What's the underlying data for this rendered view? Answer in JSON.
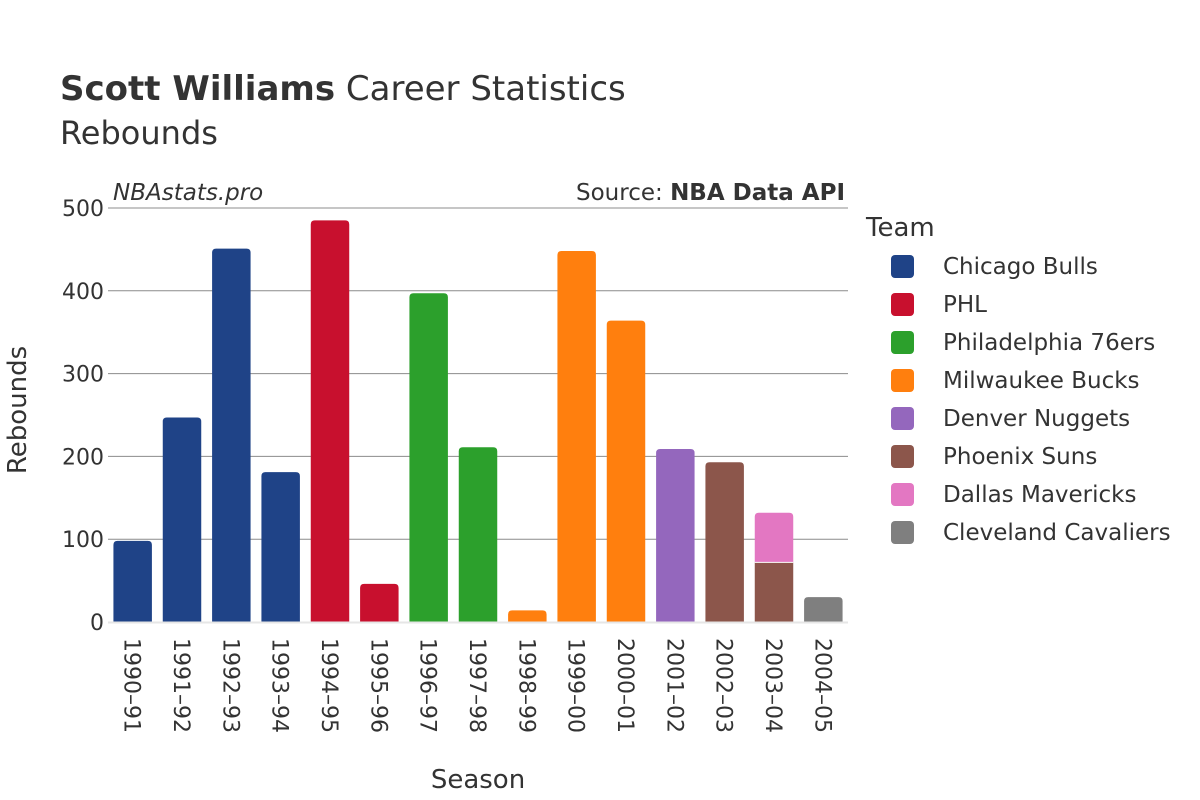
{
  "header": {
    "title_bold": "Scott Williams",
    "title_rest": " Career Statistics",
    "subtitle": "Rebounds",
    "watermark": "NBAstats.pro",
    "source_prefix": "Source: ",
    "source_name": "NBA Data API"
  },
  "legend": {
    "title": "Team"
  },
  "chart_data": {
    "type": "bar",
    "stacked": true,
    "xlabel": "Season",
    "ylabel": "Rebounds",
    "ylim": [
      0,
      500
    ],
    "yticks": [
      0,
      100,
      200,
      300,
      400,
      500
    ],
    "grid": true,
    "legend_position": "right",
    "categories": [
      "1990–91",
      "1991–92",
      "1992–93",
      "1993–94",
      "1994–95",
      "1995–96",
      "1996–97",
      "1997–98",
      "1998–99",
      "1999–00",
      "2000–01",
      "2001–02",
      "2002–03",
      "2003–04",
      "2004–05"
    ],
    "series": [
      {
        "name": "Chicago Bulls",
        "color": "#1f4387",
        "values": [
          98,
          247,
          451,
          181,
          0,
          0,
          0,
          0,
          0,
          0,
          0,
          0,
          0,
          0,
          0
        ]
      },
      {
        "name": "PHL",
        "color": "#c8102e",
        "values": [
          0,
          0,
          0,
          0,
          485,
          46,
          0,
          0,
          0,
          0,
          0,
          0,
          0,
          0,
          0
        ]
      },
      {
        "name": "Philadelphia 76ers",
        "color": "#2ca02c",
        "values": [
          0,
          0,
          0,
          0,
          0,
          0,
          397,
          211,
          0,
          0,
          0,
          0,
          0,
          0,
          0
        ]
      },
      {
        "name": "Milwaukee Bucks",
        "color": "#ff7f0e",
        "values": [
          0,
          0,
          0,
          0,
          0,
          0,
          0,
          0,
          14,
          448,
          364,
          0,
          0,
          0,
          0
        ]
      },
      {
        "name": "Denver Nuggets",
        "color": "#9467bd",
        "values": [
          0,
          0,
          0,
          0,
          0,
          0,
          0,
          0,
          0,
          0,
          0,
          209,
          0,
          0,
          0
        ]
      },
      {
        "name": "Phoenix Suns",
        "color": "#8c564b",
        "values": [
          0,
          0,
          0,
          0,
          0,
          0,
          0,
          0,
          0,
          0,
          0,
          0,
          193,
          72,
          0
        ]
      },
      {
        "name": "Dallas Mavericks",
        "color": "#e377c2",
        "values": [
          0,
          0,
          0,
          0,
          0,
          0,
          0,
          0,
          0,
          0,
          0,
          0,
          0,
          60,
          0
        ]
      },
      {
        "name": "Cleveland Cavaliers",
        "color": "#7f7f7f",
        "values": [
          0,
          0,
          0,
          0,
          0,
          0,
          0,
          0,
          0,
          0,
          0,
          0,
          0,
          0,
          30
        ]
      }
    ]
  }
}
